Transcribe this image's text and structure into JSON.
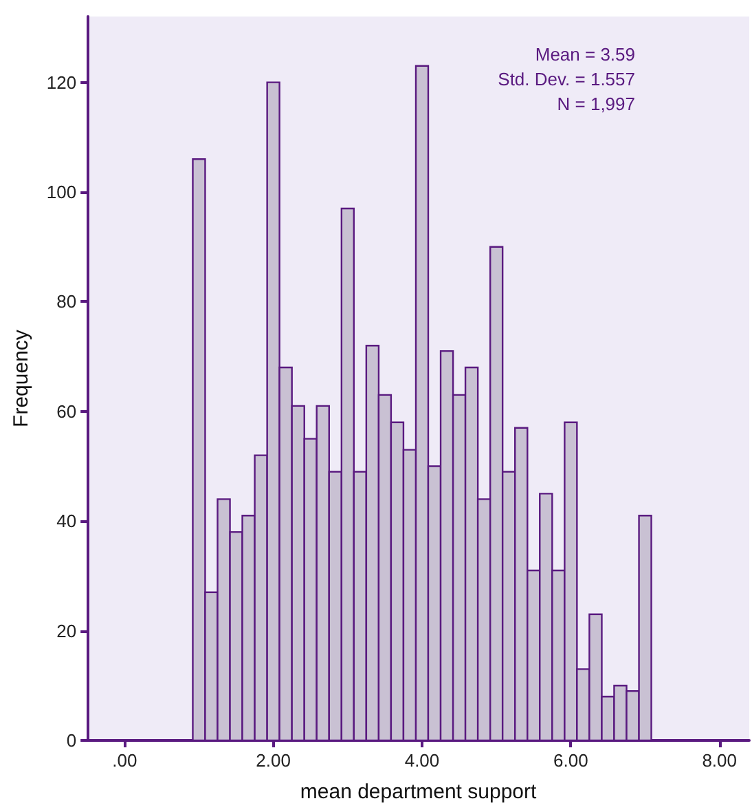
{
  "chart_data": {
    "type": "histogram",
    "xlabel": "mean department support",
    "ylabel": "Frequency",
    "annotations": [
      "Mean = 3.59",
      "Std. Dev. = 1.557",
      "N = 1,997"
    ],
    "bins": [
      0.917,
      1.083,
      1.25,
      1.417,
      1.583,
      1.75,
      1.917,
      2.083,
      2.25,
      2.417,
      2.583,
      2.75,
      2.917,
      3.083,
      3.25,
      3.417,
      3.583,
      3.75,
      3.917,
      4.083,
      4.25,
      4.417,
      4.583,
      4.75,
      4.917,
      5.083,
      5.25,
      5.417,
      5.583,
      5.75,
      5.917,
      6.083,
      6.25,
      6.417,
      6.583,
      6.75,
      6.917,
      7.083
    ],
    "values": [
      106,
      27,
      44,
      38,
      41,
      52,
      120,
      68,
      61,
      55,
      61,
      49,
      97,
      49,
      72,
      63,
      58,
      53,
      123,
      50,
      71,
      63,
      68,
      44,
      90,
      49,
      57,
      31,
      45,
      31,
      58,
      13,
      23,
      8,
      10,
      9,
      41
    ],
    "color": "#c9c1d3",
    "xlim": [
      -0.5,
      8.4
    ],
    "xticks": [
      {
        "value": 0,
        "label": ".00"
      },
      {
        "value": 2,
        "label": "2.00"
      },
      {
        "value": 4,
        "label": "4.00"
      },
      {
        "value": 6,
        "label": "6.00"
      },
      {
        "value": 8,
        "label": "8.00"
      }
    ],
    "ylim": [
      0,
      132
    ],
    "yticks": [
      0,
      20,
      40,
      60,
      80,
      100,
      120
    ]
  }
}
